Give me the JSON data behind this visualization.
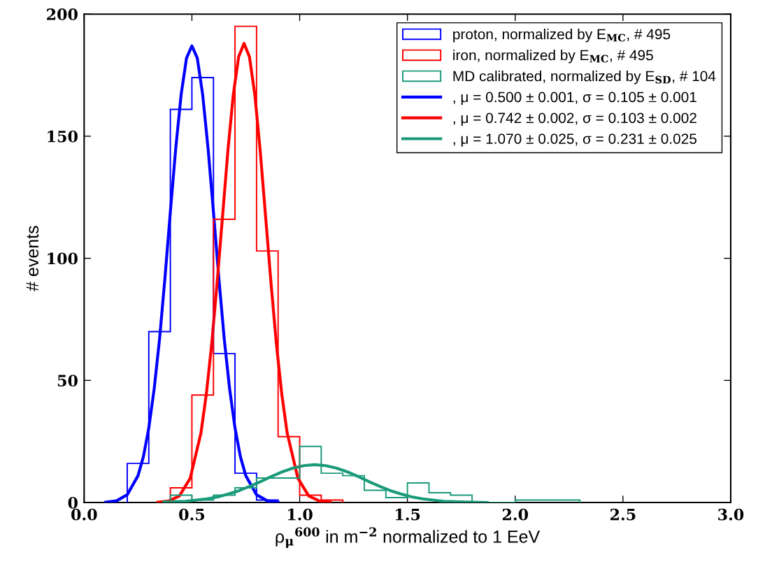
{
  "chart_data": {
    "type": "histogram",
    "xlabel": "ρ$_{μ}$$^{600}$ in m$^{−2}$ normalized to 1 EeV",
    "ylabel": "# events",
    "xlim": [
      0,
      3
    ],
    "ylim": [
      0,
      200
    ],
    "xticks": [
      {
        "value": 0,
        "label": "0.0"
      },
      {
        "value": 0.5,
        "label": "0.5"
      },
      {
        "value": 1,
        "label": "1.0"
      },
      {
        "value": 1.5,
        "label": "1.5"
      },
      {
        "value": 2,
        "label": "2.0"
      },
      {
        "value": 2.5,
        "label": "2.5"
      },
      {
        "value": 3,
        "label": "3.0"
      }
    ],
    "yticks": [
      0,
      50,
      100,
      150,
      200
    ],
    "grid": false,
    "legend": "top right",
    "series": [
      {
        "type": "histogram",
        "name": "proton, normalized by E$_{MC}$, # 495",
        "color": "#0000ff",
        "bins": [
          0.2,
          0.3,
          0.4,
          0.5,
          0.6,
          0.7,
          0.8,
          0.9
        ],
        "values": [
          16,
          70,
          161,
          174,
          61,
          12,
          1
        ]
      },
      {
        "type": "histogram",
        "name": "iron, normalized by E$_{MC}$, # 495",
        "color": "#ff0000",
        "bins": [
          0.4,
          0.5,
          0.6,
          0.7,
          0.8,
          0.9,
          1.0,
          1.1,
          1.2
        ],
        "values": [
          6,
          44,
          116,
          195,
          103,
          27,
          3,
          1
        ]
      },
      {
        "type": "histogram",
        "name": "MD calibrated, normalized by E$_{SD}$, # 104",
        "color": "#1a9a7a",
        "bins": [
          0.4,
          0.5,
          0.6,
          0.7,
          0.8,
          0.9,
          1.0,
          1.1,
          1.2,
          1.3,
          1.4,
          1.5,
          1.6,
          1.7,
          1.8,
          1.9,
          2.0,
          2.1,
          2.2,
          2.3
        ],
        "values": [
          3,
          1,
          3,
          6,
          10,
          10,
          23,
          12,
          11,
          5,
          2,
          8,
          4,
          3,
          0,
          0,
          1,
          1,
          1
        ]
      },
      {
        "type": "line",
        "name": ", μ = 0.500 ± 0.001, σ = 0.105 ± 0.001",
        "color": "#0000ff",
        "x": [
          0.1,
          0.15,
          0.2,
          0.25,
          0.275,
          0.3,
          0.325,
          0.35,
          0.375,
          0.4,
          0.425,
          0.45,
          0.475,
          0.5,
          0.525,
          0.55,
          0.575,
          0.6,
          0.625,
          0.65,
          0.675,
          0.7,
          0.725,
          0.75,
          0.8,
          0.85,
          0.9
        ],
        "values": [
          0.1,
          0.7,
          3.2,
          11,
          18.8,
          30.5,
          46.6,
          67,
          92,
          119,
          145,
          167,
          182,
          187,
          182,
          167,
          145,
          119,
          92,
          67,
          46.6,
          30.5,
          18.8,
          11,
          3.2,
          0.7,
          0.1
        ]
      },
      {
        "type": "line",
        "name": ", μ = 0.742 ± 0.002, σ = 0.103 ± 0.002",
        "color": "#ff0000",
        "x": [
          0.342,
          0.392,
          0.442,
          0.492,
          0.542,
          0.567,
          0.592,
          0.617,
          0.642,
          0.667,
          0.692,
          0.717,
          0.742,
          0.767,
          0.792,
          0.817,
          0.842,
          0.867,
          0.892,
          0.917,
          0.942,
          0.992,
          1.042,
          1.092,
          1.142
        ],
        "values": [
          0.1,
          0.6,
          2.7,
          9.9,
          28.5,
          44.4,
          65,
          90,
          117,
          144,
          167,
          182.5,
          188,
          182.5,
          167,
          144,
          117,
          90,
          65,
          44.4,
          28.5,
          9.9,
          2.7,
          0.6,
          0.1
        ]
      },
      {
        "type": "line",
        "name": ", μ = 1.070 ± 0.025, σ = 0.231 ± 0.025",
        "color": "#1a9a7a",
        "x": [
          0.37,
          0.47,
          0.57,
          0.62,
          0.67,
          0.72,
          0.77,
          0.82,
          0.87,
          0.92,
          0.97,
          1.02,
          1.07,
          1.12,
          1.17,
          1.22,
          1.27,
          1.32,
          1.37,
          1.42,
          1.47,
          1.52,
          1.57,
          1.67,
          1.77,
          1.87
        ],
        "values": [
          0.2,
          0.5,
          1.5,
          2.3,
          3.5,
          4.9,
          6.7,
          8.6,
          10.7,
          12.6,
          14.1,
          15.1,
          15.5,
          15.1,
          14.1,
          12.6,
          10.7,
          8.6,
          6.7,
          4.9,
          3.5,
          2.3,
          1.5,
          0.5,
          0.2,
          0
        ]
      }
    ]
  }
}
